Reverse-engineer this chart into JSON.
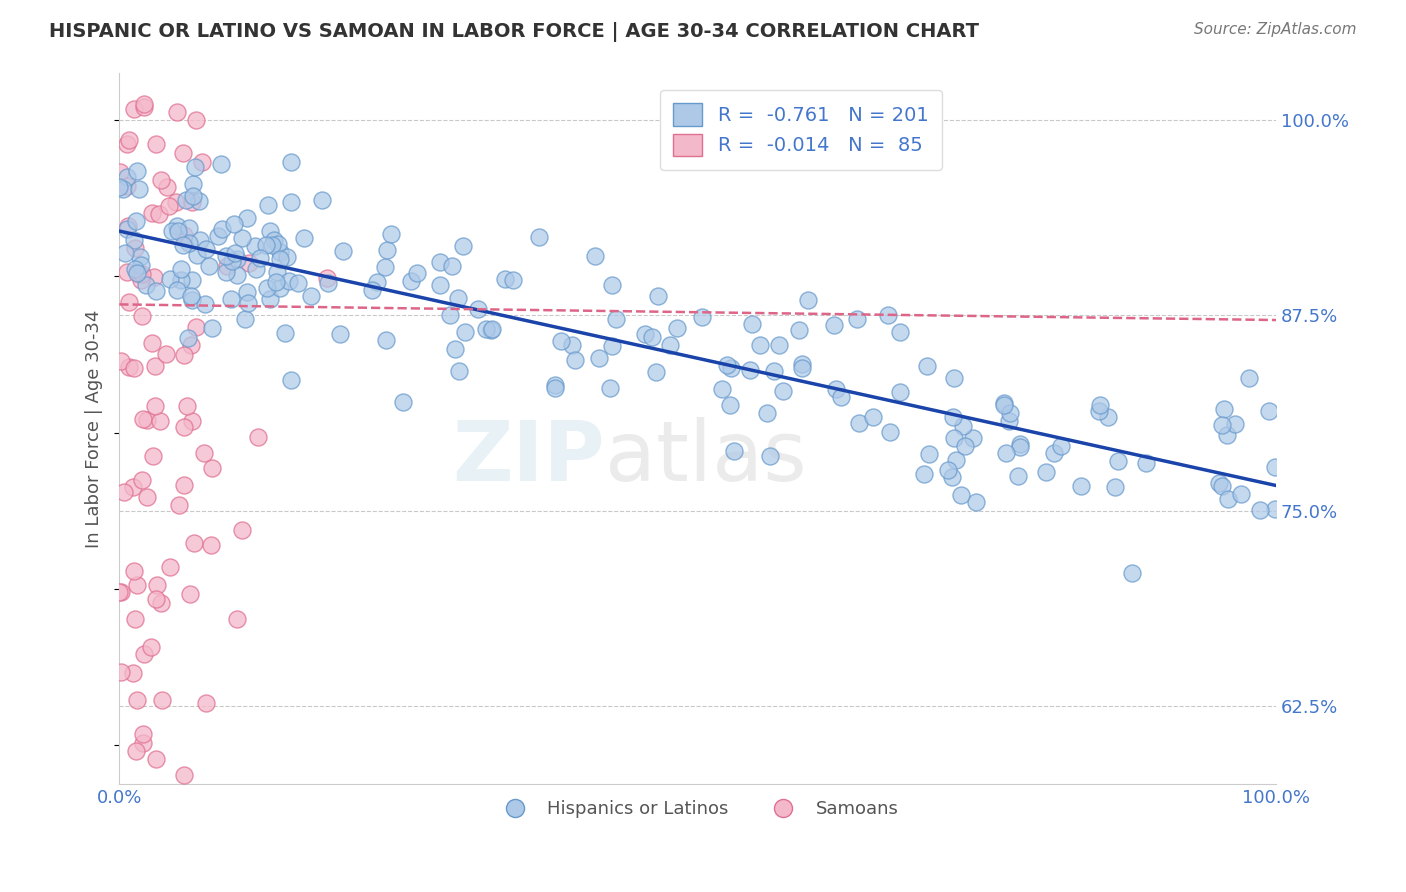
{
  "title": "HISPANIC OR LATINO VS SAMOAN IN LABOR FORCE | AGE 30-34 CORRELATION CHART",
  "source_text": "Source: ZipAtlas.com",
  "ylabel": "In Labor Force | Age 30-34",
  "xlim": [
    0.0,
    1.0
  ],
  "ylim": [
    0.575,
    1.03
  ],
  "yticks": [
    0.625,
    0.75,
    0.875,
    1.0
  ],
  "ytick_labels": [
    "62.5%",
    "75.0%",
    "87.5%",
    "100.0%"
  ],
  "blue_R": -0.761,
  "blue_N": 201,
  "pink_R": -0.014,
  "pink_N": 85,
  "blue_fill": "#aec9e8",
  "blue_edge": "#6699cc",
  "pink_fill": "#f4b8cb",
  "pink_edge": "#e07090",
  "blue_line": "#1a44aa",
  "pink_line": "#dd6688",
  "legend_label_blue": "Hispanics or Latinos",
  "legend_label_pink": "Samoans",
  "background_color": "#ffffff",
  "grid_color": "#bbbbbb",
  "title_color": "#333333",
  "axis_label_color": "#555555",
  "tick_color": "#4477cc",
  "source_color": "#777777"
}
